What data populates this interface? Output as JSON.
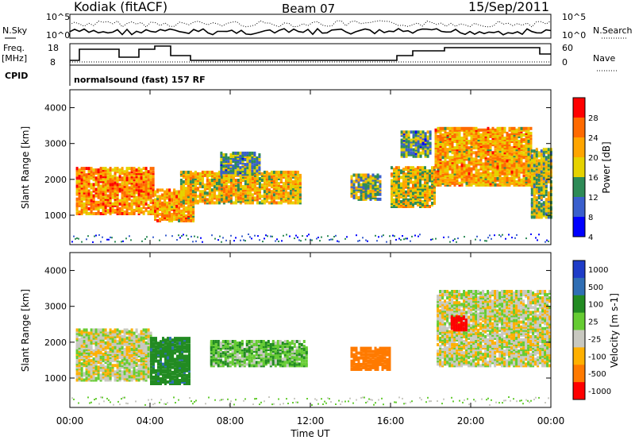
{
  "header": {
    "title": "Kodiak (fitACF)",
    "beam": "Beam 07",
    "date": "15/Sep/2011"
  },
  "summary_panel": {
    "nsky_label": "N.Sky",
    "nsky_ticks": [
      "10^5",
      "10^0"
    ],
    "nsearch_label": "N.Search",
    "nsearch_ticks": [
      "10^5",
      "10^0"
    ],
    "freq_label": "Freq.",
    "freq_unit": "[MHz]",
    "freq_ticks": [
      "18",
      "8"
    ],
    "nave_label": "Nave",
    "nave_ticks": [
      "60",
      "0"
    ],
    "cpid_label": "CPID",
    "cpid_text": "normalsound (fast) 157 RF"
  },
  "chart_data": [
    {
      "type": "heatmap",
      "title": "",
      "xlabel": "",
      "ylabel": "Slant Range [km]",
      "xlim": [
        "00:00",
        "24:00"
      ],
      "ylim": [
        180,
        4500
      ],
      "yticks": [
        "1000",
        "2000",
        "3000",
        "4000"
      ],
      "colorbar": {
        "label": "Power [dB]",
        "ticks": [
          "28",
          "24",
          "20",
          "16",
          "12",
          "8",
          "4"
        ],
        "range": [
          0,
          30
        ],
        "colors": [
          "#ff0000",
          "#ff6a00",
          "#ffa500",
          "#e6d200",
          "#2e8b57",
          "#3a5fcd",
          "#0000ff"
        ]
      },
      "features": [
        {
          "t0": 0.3,
          "t1": 4.2,
          "r0": 1000,
          "r1": 2300,
          "level": 22
        },
        {
          "t0": 4.2,
          "t1": 6.2,
          "r0": 800,
          "r1": 1700,
          "level": 20
        },
        {
          "t0": 5.5,
          "t1": 11.5,
          "r0": 1300,
          "r1": 2200,
          "level": 18
        },
        {
          "t0": 7.5,
          "t1": 9.5,
          "r0": 2100,
          "r1": 2700,
          "level": 10
        },
        {
          "t0": 14.0,
          "t1": 15.5,
          "r0": 1400,
          "r1": 2100,
          "level": 12
        },
        {
          "t0": 16.0,
          "t1": 18.2,
          "r0": 1200,
          "r1": 2300,
          "level": 16
        },
        {
          "t0": 16.5,
          "t1": 18.0,
          "r0": 2600,
          "r1": 3300,
          "level": 10
        },
        {
          "t0": 18.2,
          "t1": 23.0,
          "r0": 1800,
          "r1": 3400,
          "level": 20
        },
        {
          "t0": 23.0,
          "t1": 24.0,
          "r0": 900,
          "r1": 2800,
          "level": 14
        }
      ]
    },
    {
      "type": "heatmap",
      "title": "",
      "xlabel": "Time UT",
      "ylabel": "Slant Range [km]",
      "xlim": [
        "00:00",
        "24:00"
      ],
      "xticks": [
        "00:00",
        "04:00",
        "08:00",
        "12:00",
        "16:00",
        "20:00",
        "00:00"
      ],
      "ylim": [
        180,
        4500
      ],
      "yticks": [
        "1000",
        "2000",
        "3000",
        "4000"
      ],
      "colorbar": {
        "label": "Velocity [m s-1]",
        "ticks": [
          "1000",
          "500",
          "100",
          "25",
          "-25",
          "-100",
          "-500",
          "-1000"
        ],
        "colors": [
          "#1e3cc8",
          "#2f6eb4",
          "#228b22",
          "#66cc33",
          "#c8c8c0",
          "#ffb000",
          "#ff7a00",
          "#ff0000"
        ]
      },
      "features": [
        {
          "t0": 0.3,
          "t1": 4.0,
          "r0": 900,
          "r1": 2300,
          "velocity": 0
        },
        {
          "t0": 4.0,
          "t1": 6.0,
          "r0": 800,
          "r1": 2100,
          "velocity": 150
        },
        {
          "t0": 7.0,
          "t1": 11.8,
          "r0": 1300,
          "r1": 2000,
          "velocity": 60
        },
        {
          "t0": 14.0,
          "t1": 16.0,
          "r0": 1200,
          "r1": 1800,
          "velocity": -300
        },
        {
          "t0": 18.3,
          "t1": 24.0,
          "r0": 1300,
          "r1": 3400,
          "velocity": 0
        },
        {
          "t0": 19.0,
          "t1": 19.8,
          "r0": 2300,
          "r1": 2700,
          "velocity": -800
        }
      ]
    }
  ]
}
